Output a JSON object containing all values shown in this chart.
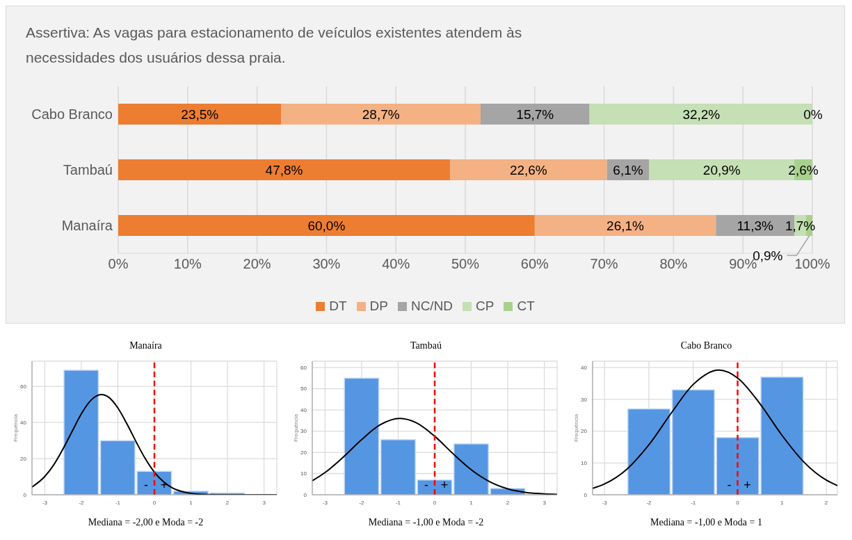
{
  "chart_data": [
    {
      "type": "bar",
      "orientation": "horizontal",
      "stacked": true,
      "title": "Assertiva: As vagas para estacionamento de veículos existentes atendem às necessidades dos usuários dessa praia.",
      "categories": [
        "Cabo Branco",
        "Tambaú",
        "Manaíra"
      ],
      "series": [
        {
          "name": "DT",
          "color": "#ed7d31",
          "values": [
            23.5,
            47.8,
            60.0
          ],
          "value_labels": [
            "23,5%",
            "47,8%",
            "60,0%"
          ]
        },
        {
          "name": "DP",
          "color": "#f4b183",
          "values": [
            28.7,
            22.6,
            26.1
          ],
          "value_labels": [
            "28,7%",
            "22,6%",
            "26,1%"
          ]
        },
        {
          "name": "NC/ND",
          "color": "#a5a5a5",
          "values": [
            15.7,
            6.1,
            11.3
          ],
          "value_labels": [
            "15,7%",
            "6,1%",
            "11,3%"
          ]
        },
        {
          "name": "CP",
          "color": "#c5e0b4",
          "values": [
            32.2,
            20.9,
            1.7
          ],
          "value_labels": [
            "32,2%",
            "20,9%",
            "1,7%"
          ]
        },
        {
          "name": "CT",
          "color": "#a9d18e",
          "values": [
            0,
            2.6,
            0.9
          ],
          "value_labels": [
            "0%",
            "2,6%",
            "0,9%"
          ]
        }
      ],
      "xlim": [
        0,
        100
      ],
      "xticks": [
        {
          "value": 0,
          "label": "0%"
        },
        {
          "value": 10,
          "label": "10%"
        },
        {
          "value": 20,
          "label": "20%"
        },
        {
          "value": 30,
          "label": "30%"
        },
        {
          "value": 40,
          "label": "40%"
        },
        {
          "value": 50,
          "label": "50%"
        },
        {
          "value": 60,
          "label": "60%"
        },
        {
          "value": 70,
          "label": "70%"
        },
        {
          "value": 80,
          "label": "80%"
        },
        {
          "value": 90,
          "label": "90%"
        },
        {
          "value": 100,
          "label": "100%"
        }
      ],
      "grid": "x",
      "legend": "bottom"
    },
    {
      "type": "histogram",
      "title": "Manaíra",
      "ylabel": "Frequência",
      "color": "#5596e3",
      "bins": [
        -2.5,
        -1.5,
        -0.5,
        0.5,
        1.5,
        2.5
      ],
      "values": [
        69,
        30,
        13,
        2,
        1
      ],
      "series": [
        {
          "type": "line",
          "color": "#000000",
          "x": [
            -3.35,
            -3,
            -2.75,
            -2.5,
            -2.25,
            -2,
            -1.75,
            -1.45,
            -1.25,
            -1,
            -0.75,
            -0.5,
            -0.25,
            0,
            0.25,
            0.5,
            0.75,
            1,
            1.5,
            2,
            3.35
          ],
          "values": [
            4.3,
            10.1,
            16.7,
            25.4,
            35.2,
            44.8,
            52.1,
            55.5,
            54,
            48.1,
            39.2,
            29.3,
            20,
            12.5,
            7.2,
            3.7,
            1.8,
            0.8,
            0.1,
            0,
            0
          ]
        }
      ],
      "xlim": [
        -3.35,
        3.35
      ],
      "xticks": [
        -3,
        -2,
        -1,
        0,
        1,
        2,
        3
      ],
      "ylim": [
        0,
        74
      ],
      "yticks": [
        0,
        20,
        40,
        60
      ],
      "grid": true,
      "ref_lines": [
        {
          "axis": "x",
          "value": 0,
          "color": "#ff0000",
          "line_style": "dashed"
        }
      ],
      "annotations": [
        "-",
        "+",
        "Mediana = -2,00 e Moda = -2"
      ]
    },
    {
      "type": "histogram",
      "title": "Tambaú",
      "ylabel": "Frequência",
      "color": "#5596e3",
      "bins": [
        -2.5,
        -1.5,
        -0.5,
        0.5,
        1.5,
        2.5
      ],
      "values": [
        55,
        26,
        7,
        24,
        3
      ],
      "series": [
        {
          "type": "line",
          "color": "#000000",
          "x": [
            -3.35,
            -3,
            -2.5,
            -2,
            -1.5,
            -0.95,
            -0.5,
            0,
            0.5,
            1,
            1.5,
            2,
            2.5,
            3,
            3.35
          ],
          "values": [
            6.6,
            10.5,
            17.8,
            26,
            32.9,
            36,
            33.9,
            27.6,
            19.4,
            11.8,
            6.2,
            2.8,
            1.1,
            0.4,
            0.2
          ]
        }
      ],
      "xlim": [
        -3.35,
        3.35
      ],
      "xticks": [
        -3,
        -2,
        -1,
        0,
        1,
        2,
        3
      ],
      "ylim": [
        0,
        63
      ],
      "yticks": [
        0,
        10,
        20,
        30,
        40,
        50,
        60
      ],
      "grid": true,
      "ref_lines": [
        {
          "axis": "x",
          "value": 0,
          "color": "#ff0000",
          "line_style": "dashed"
        }
      ],
      "annotations": [
        "-",
        "+",
        "Mediana = -1,00 e Moda = -2"
      ]
    },
    {
      "type": "histogram",
      "title": "Cabo Branco",
      "ylabel": "Frequência",
      "color": "#5596e3",
      "bins": [
        -2.5,
        -1.5,
        -0.5,
        0.5,
        1.5
      ],
      "values": [
        27,
        33,
        18,
        37
      ],
      "series": [
        {
          "type": "line",
          "color": "#000000",
          "x": [
            -3.27,
            -3,
            -2.5,
            -2,
            -1.5,
            -1,
            -0.42,
            0,
            0.5,
            1,
            1.5,
            2,
            2.25
          ],
          "values": [
            2,
            3.4,
            8,
            15.7,
            25.6,
            34.7,
            39.2,
            36.7,
            28.7,
            18.7,
            10.2,
            4.6,
            2.9
          ]
        }
      ],
      "xlim": [
        -3.27,
        2.25
      ],
      "xticks": [
        -3,
        -2,
        -1,
        0,
        1,
        2
      ],
      "ylim": [
        0,
        42
      ],
      "yticks": [
        0,
        10,
        20,
        30,
        40
      ],
      "grid": true,
      "ref_lines": [
        {
          "axis": "x",
          "value": 0,
          "color": "#ff0000",
          "line_style": "dashed"
        }
      ],
      "annotations": [
        "-",
        "+",
        "Mediana = -1,00 e Moda = 1"
      ]
    }
  ]
}
